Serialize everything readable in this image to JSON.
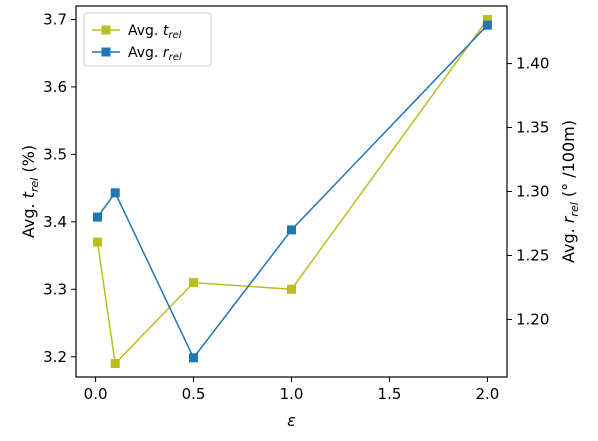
{
  "chart_data": {
    "type": "line",
    "x": [
      0.01,
      0.1,
      0.5,
      1.0,
      2.0
    ],
    "xlabel": "ε",
    "xlim": [
      -0.1,
      2.1
    ],
    "xticks": [
      "0.0",
      "0.5",
      "1.0",
      "1.5",
      "2.0"
    ],
    "y_left": {
      "label_main": "Avg. ",
      "label_var": "t",
      "label_sub": "rel",
      "label_unit": " (%)",
      "lim": [
        3.17,
        3.72
      ],
      "ticks": [
        "3.2",
        "3.3",
        "3.4",
        "3.5",
        "3.6",
        "3.7"
      ]
    },
    "y_right": {
      "label_main": "Avg. ",
      "label_var": "r",
      "label_sub": "rel",
      "label_unit": " (° /100m)",
      "lim": [
        1.155,
        1.445
      ],
      "ticks": [
        "1.20",
        "1.25",
        "1.30",
        "1.35",
        "1.40"
      ]
    },
    "series": [
      {
        "name_main": "Avg. ",
        "name_var": "t",
        "name_sub": "rel",
        "axis": "left",
        "color": "#bcbd22",
        "values": [
          3.37,
          3.19,
          3.31,
          3.3,
          3.7
        ]
      },
      {
        "name_main": "Avg. ",
        "name_var": "r",
        "name_sub": "rel",
        "axis": "right",
        "color": "#1f77b4",
        "values": [
          1.28,
          1.299,
          1.17,
          1.27,
          1.43
        ]
      }
    ],
    "legend": "top-left",
    "grid": false
  }
}
